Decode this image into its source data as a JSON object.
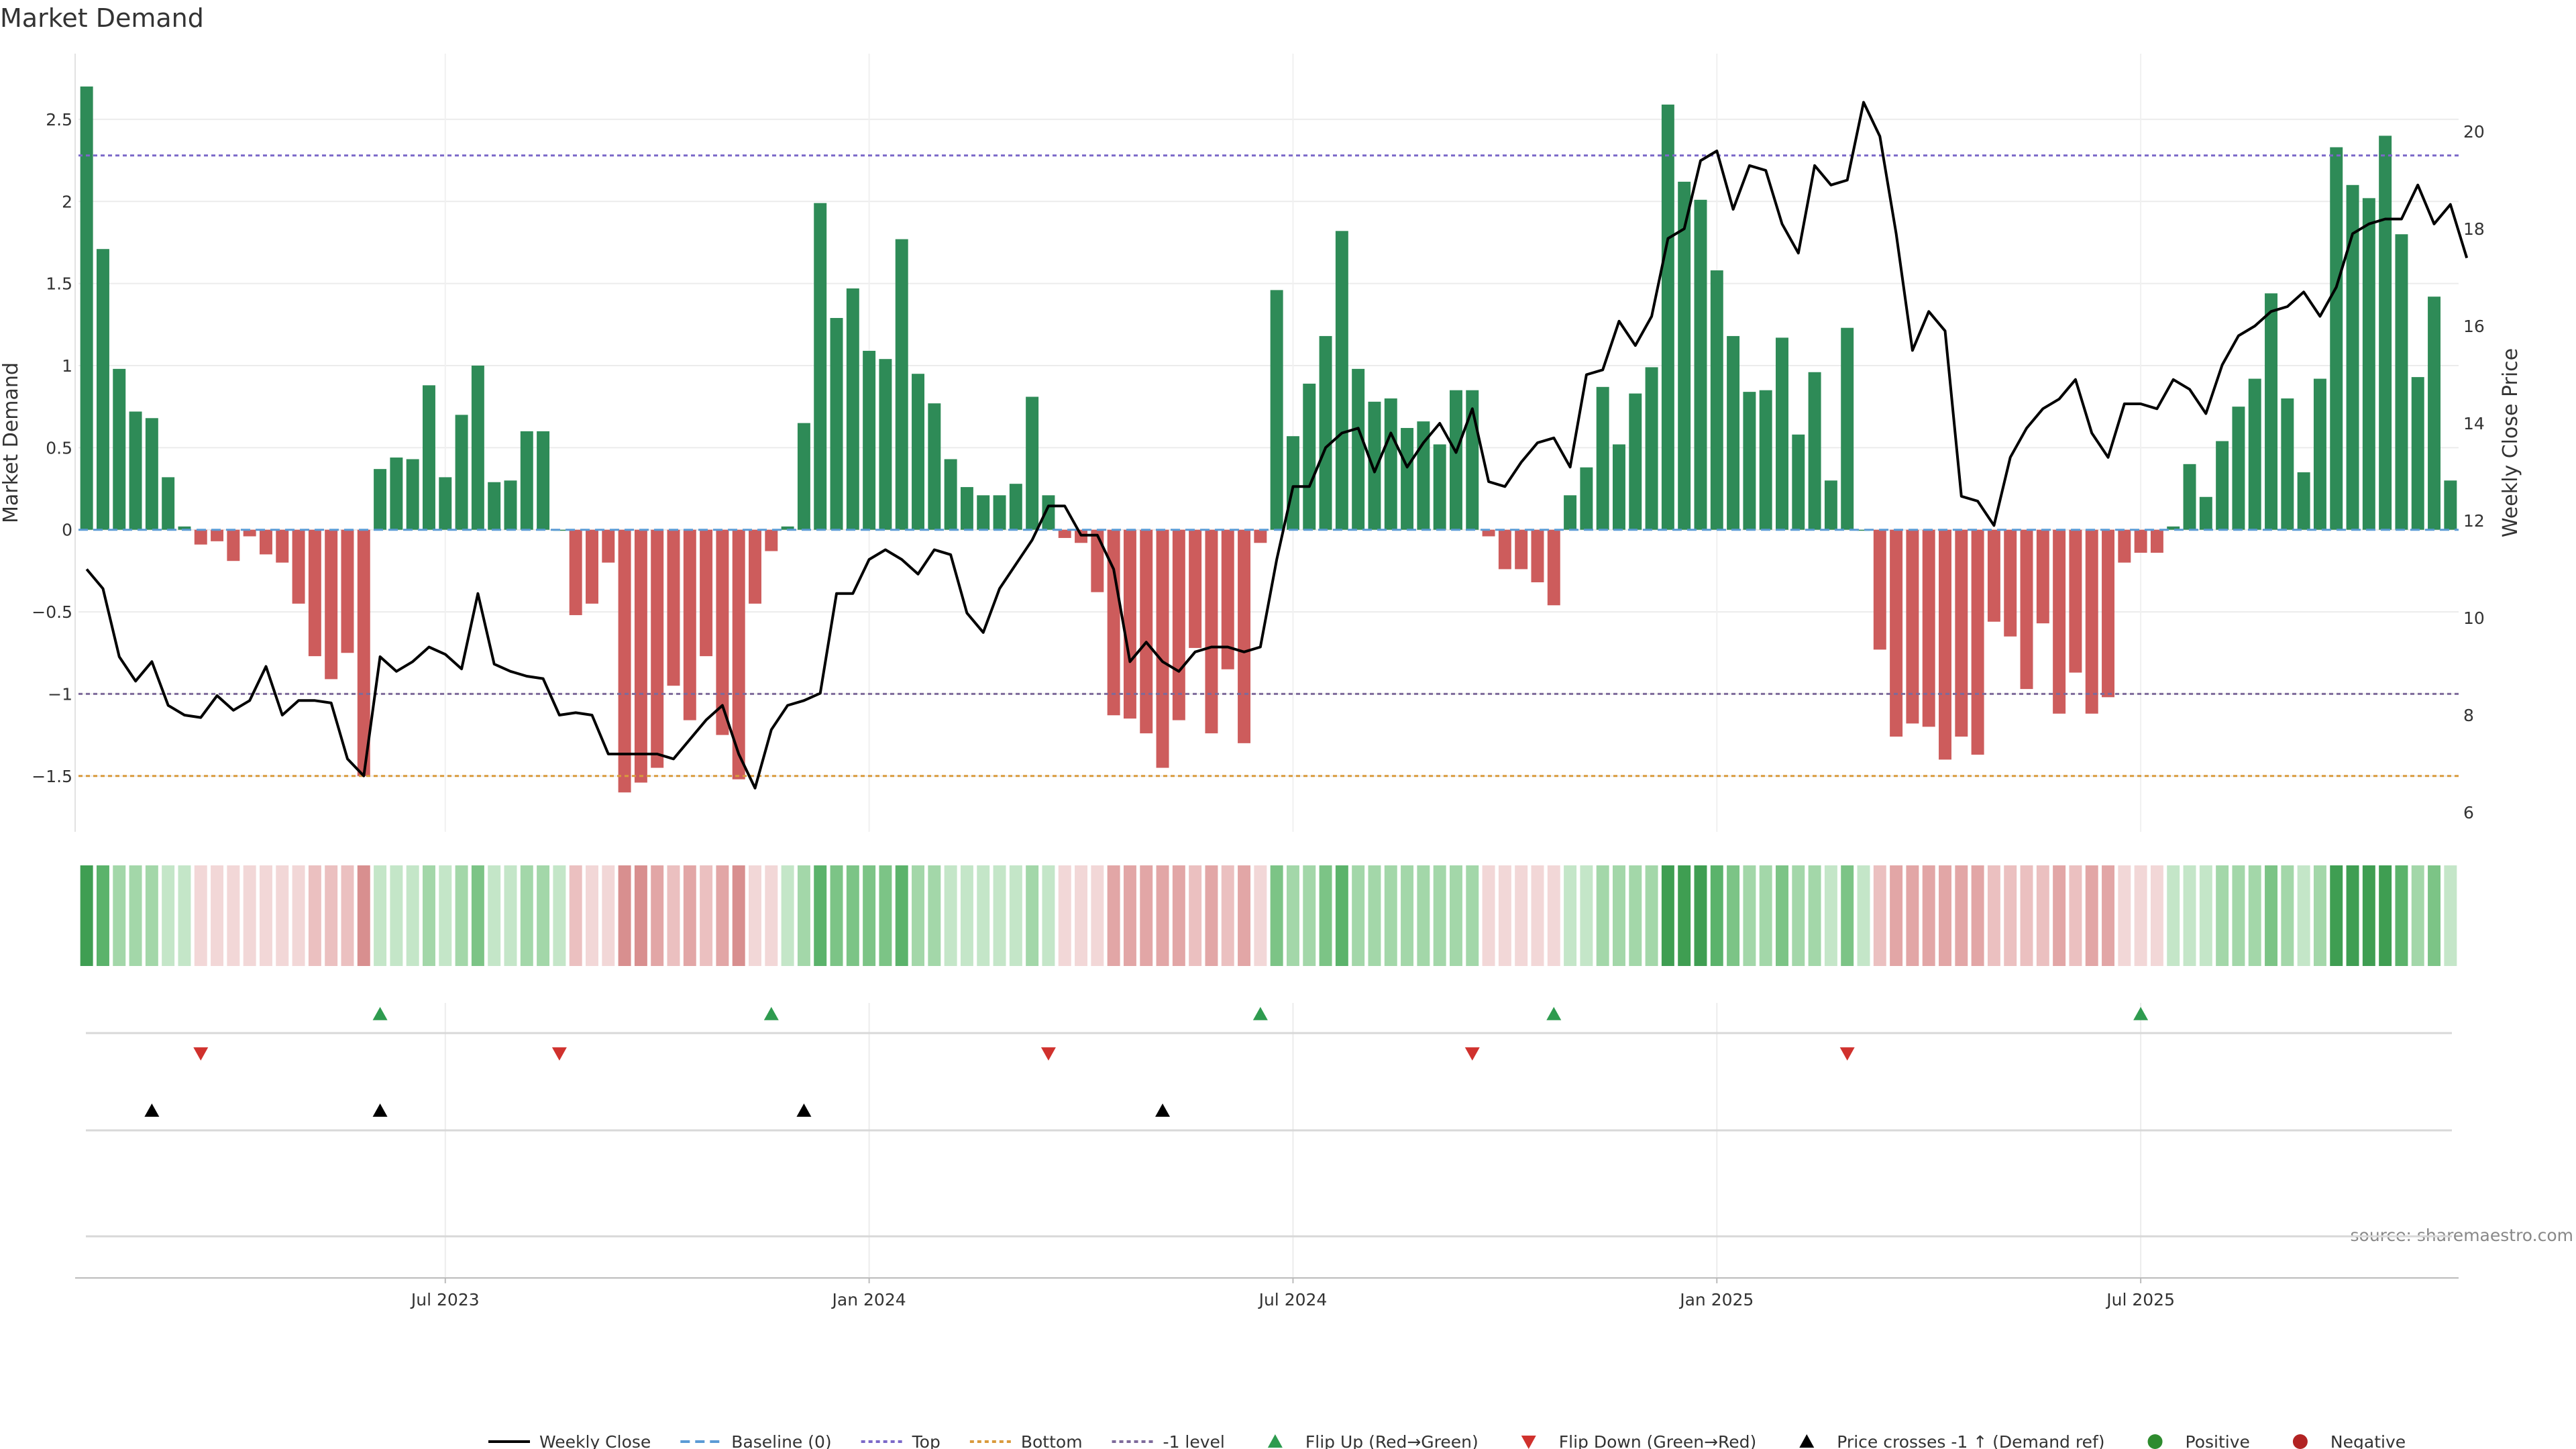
{
  "chart_data": {
    "type": "bar",
    "title": "Market Demand",
    "ylabel_left": "Market Demand",
    "ylabel_right": "Weekly Close Price",
    "source": "source: sharemaestro.com",
    "ylim_left": [
      -1.84,
      2.9
    ],
    "ylim_right": [
      5.6,
      21.6
    ],
    "yticks_left": [
      "2.5",
      "2",
      "1.5",
      "1",
      "0.5",
      "0",
      "−0.5",
      "−1",
      "−1.5"
    ],
    "yticks_left_values": [
      2.5,
      2,
      1.5,
      1,
      0.5,
      0,
      -0.5,
      -1,
      -1.5
    ],
    "yticks_right": [
      "20",
      "18",
      "16",
      "14",
      "12",
      "10",
      "8",
      "6"
    ],
    "yticks_right_values": [
      20,
      18,
      16,
      14,
      12,
      10,
      8,
      6
    ],
    "xticks": [
      {
        "label": "Jul 2023",
        "index": 22
      },
      {
        "label": "Jan 2024",
        "index": 48
      },
      {
        "label": "Jul 2024",
        "index": 74
      },
      {
        "label": "Jan 2025",
        "index": 100
      },
      {
        "label": "Jul 2025",
        "index": 126
      }
    ],
    "reference_lines": {
      "top": 2.28,
      "bottom": -1.5,
      "minus_one": -1.0,
      "baseline": 0
    },
    "demand": [
      2.7,
      1.71,
      0.98,
      0.72,
      0.68,
      0.32,
      0.02,
      -0.09,
      -0.07,
      -0.19,
      -0.04,
      -0.15,
      -0.2,
      -0.45,
      -0.77,
      -0.91,
      -0.75,
      -1.5,
      0.37,
      0.44,
      0.43,
      0.88,
      0.32,
      0.7,
      1.0,
      0.29,
      0.3,
      0.6,
      0.6,
      0.0,
      -0.52,
      -0.45,
      -0.2,
      -1.6,
      -1.54,
      -1.45,
      -0.95,
      -1.16,
      -0.77,
      -1.25,
      -1.52,
      -0.45,
      -0.13,
      0.02,
      0.65,
      1.99,
      1.29,
      1.47,
      1.09,
      1.04,
      1.77,
      0.95,
      0.77,
      0.43,
      0.26,
      0.21,
      0.21,
      0.28,
      0.81,
      0.21,
      -0.05,
      -0.08,
      -0.38,
      -1.13,
      -1.15,
      -1.24,
      -1.45,
      -1.16,
      -0.72,
      -1.24,
      -0.85,
      -1.3,
      -0.08,
      1.46,
      0.57,
      0.89,
      1.18,
      1.82,
      0.98,
      0.78,
      0.8,
      0.62,
      0.66,
      0.52,
      0.85,
      0.85,
      -0.04,
      -0.24,
      -0.24,
      -0.32,
      -0.46,
      0.21,
      0.38,
      0.87,
      0.52,
      0.83,
      0.99,
      2.59,
      2.12,
      2.01,
      1.58,
      1.18,
      0.84,
      0.85,
      1.17,
      0.58,
      0.96,
      0.3,
      1.23,
      0.0,
      -0.73,
      -1.26,
      -1.18,
      -1.2,
      -1.4,
      -1.26,
      -1.37,
      -0.56,
      -0.65,
      -0.97,
      -0.57,
      -1.12,
      -0.87,
      -1.12,
      -1.02,
      -0.2,
      -0.14,
      -0.14,
      0.02,
      0.4,
      0.2,
      0.54,
      0.75,
      0.92,
      1.44,
      0.8,
      0.35,
      0.92,
      2.33,
      2.1,
      2.02,
      2.4,
      1.8,
      0.93,
      1.42,
      0.3
    ],
    "price": [
      11.0,
      10.6,
      9.2,
      8.7,
      9.1,
      8.2,
      8.0,
      7.95,
      8.4,
      8.1,
      8.3,
      9.0,
      8.0,
      8.3,
      8.3,
      8.25,
      7.1,
      6.75,
      9.2,
      8.9,
      9.1,
      9.4,
      9.25,
      8.95,
      10.5,
      9.05,
      8.9,
      8.8,
      8.75,
      8.0,
      8.05,
      8.0,
      7.2,
      7.2,
      7.2,
      7.2,
      7.1,
      7.5,
      7.9,
      8.2,
      7.2,
      6.5,
      7.7,
      8.2,
      8.3,
      8.45,
      10.5,
      10.5,
      11.2,
      11.4,
      11.2,
      10.9,
      11.4,
      11.3,
      10.1,
      9.7,
      10.6,
      11.1,
      11.6,
      12.3,
      12.3,
      11.7,
      11.7,
      11.0,
      9.1,
      9.5,
      9.1,
      8.9,
      9.3,
      9.4,
      9.4,
      9.3,
      9.4,
      11.2,
      12.7,
      12.7,
      13.5,
      13.8,
      13.9,
      13.0,
      13.8,
      13.1,
      13.6,
      14.0,
      13.4,
      14.3,
      12.8,
      12.7,
      13.2,
      13.6,
      13.7,
      13.1,
      15.0,
      15.1,
      16.1,
      15.6,
      16.2,
      17.8,
      18.0,
      19.4,
      19.6,
      18.4,
      19.3,
      19.2,
      18.1,
      17.5,
      19.3,
      18.9,
      19.0,
      20.6,
      19.9,
      17.9,
      15.5,
      16.3,
      15.9,
      12.5,
      12.4,
      11.9,
      13.3,
      13.9,
      14.3,
      14.5,
      14.9,
      13.8,
      13.3,
      14.4,
      14.4,
      14.3,
      14.9,
      14.7,
      14.2,
      15.2,
      15.8,
      16.0,
      16.3,
      16.4,
      16.7,
      16.2,
      16.8,
      17.9,
      18.1,
      18.2,
      18.2,
      18.9,
      18.1,
      18.5,
      17.4
    ],
    "heat_colors": {
      "positive_levels": [
        "#c4e6c8",
        "#a3d7a9",
        "#7cc486",
        "#5bb36b",
        "#3f9e52"
      ],
      "negative_levels": [
        "#f2d7d7",
        "#ebc0c0",
        "#e2a6a6",
        "#d88f8f",
        "#c96b6b"
      ]
    },
    "bar_colors": {
      "positive": "#2e8b57",
      "negative": "#cd5c5c"
    },
    "line_colors": {
      "price": "#000000",
      "baseline": "#5b9bd5",
      "top": "#7b68c8",
      "bottom": "#d99a3c",
      "minus_one": "#7d6a9a"
    },
    "event_rows": {
      "flip_up": [
        18,
        42,
        72,
        90,
        126
      ],
      "flip_down": [
        7,
        29,
        59,
        85,
        108
      ],
      "price_cross": [
        4,
        18,
        44,
        66
      ]
    },
    "marker_colors": {
      "flip_up": "#2e9b4f",
      "flip_down": "#d0312d",
      "price_cross": "#000000",
      "positive": "#2e8b2e",
      "negative": "#b22222"
    },
    "legend": [
      {
        "key": "weekly_close",
        "label": "Weekly Close"
      },
      {
        "key": "baseline",
        "label": "Baseline (0)"
      },
      {
        "key": "top",
        "label": "Top"
      },
      {
        "key": "bottom",
        "label": "Bottom"
      },
      {
        "key": "minus_one",
        "label": "-1 level"
      },
      {
        "key": "flip_up",
        "label": "Flip Up (Red→Green)"
      },
      {
        "key": "flip_down",
        "label": "Flip Down (Green→Red)"
      },
      {
        "key": "price_cross",
        "label": "Price crosses -1 ↑ (Demand ref)"
      },
      {
        "key": "positive",
        "label": "Positive"
      },
      {
        "key": "negative",
        "label": "Negative"
      }
    ]
  }
}
